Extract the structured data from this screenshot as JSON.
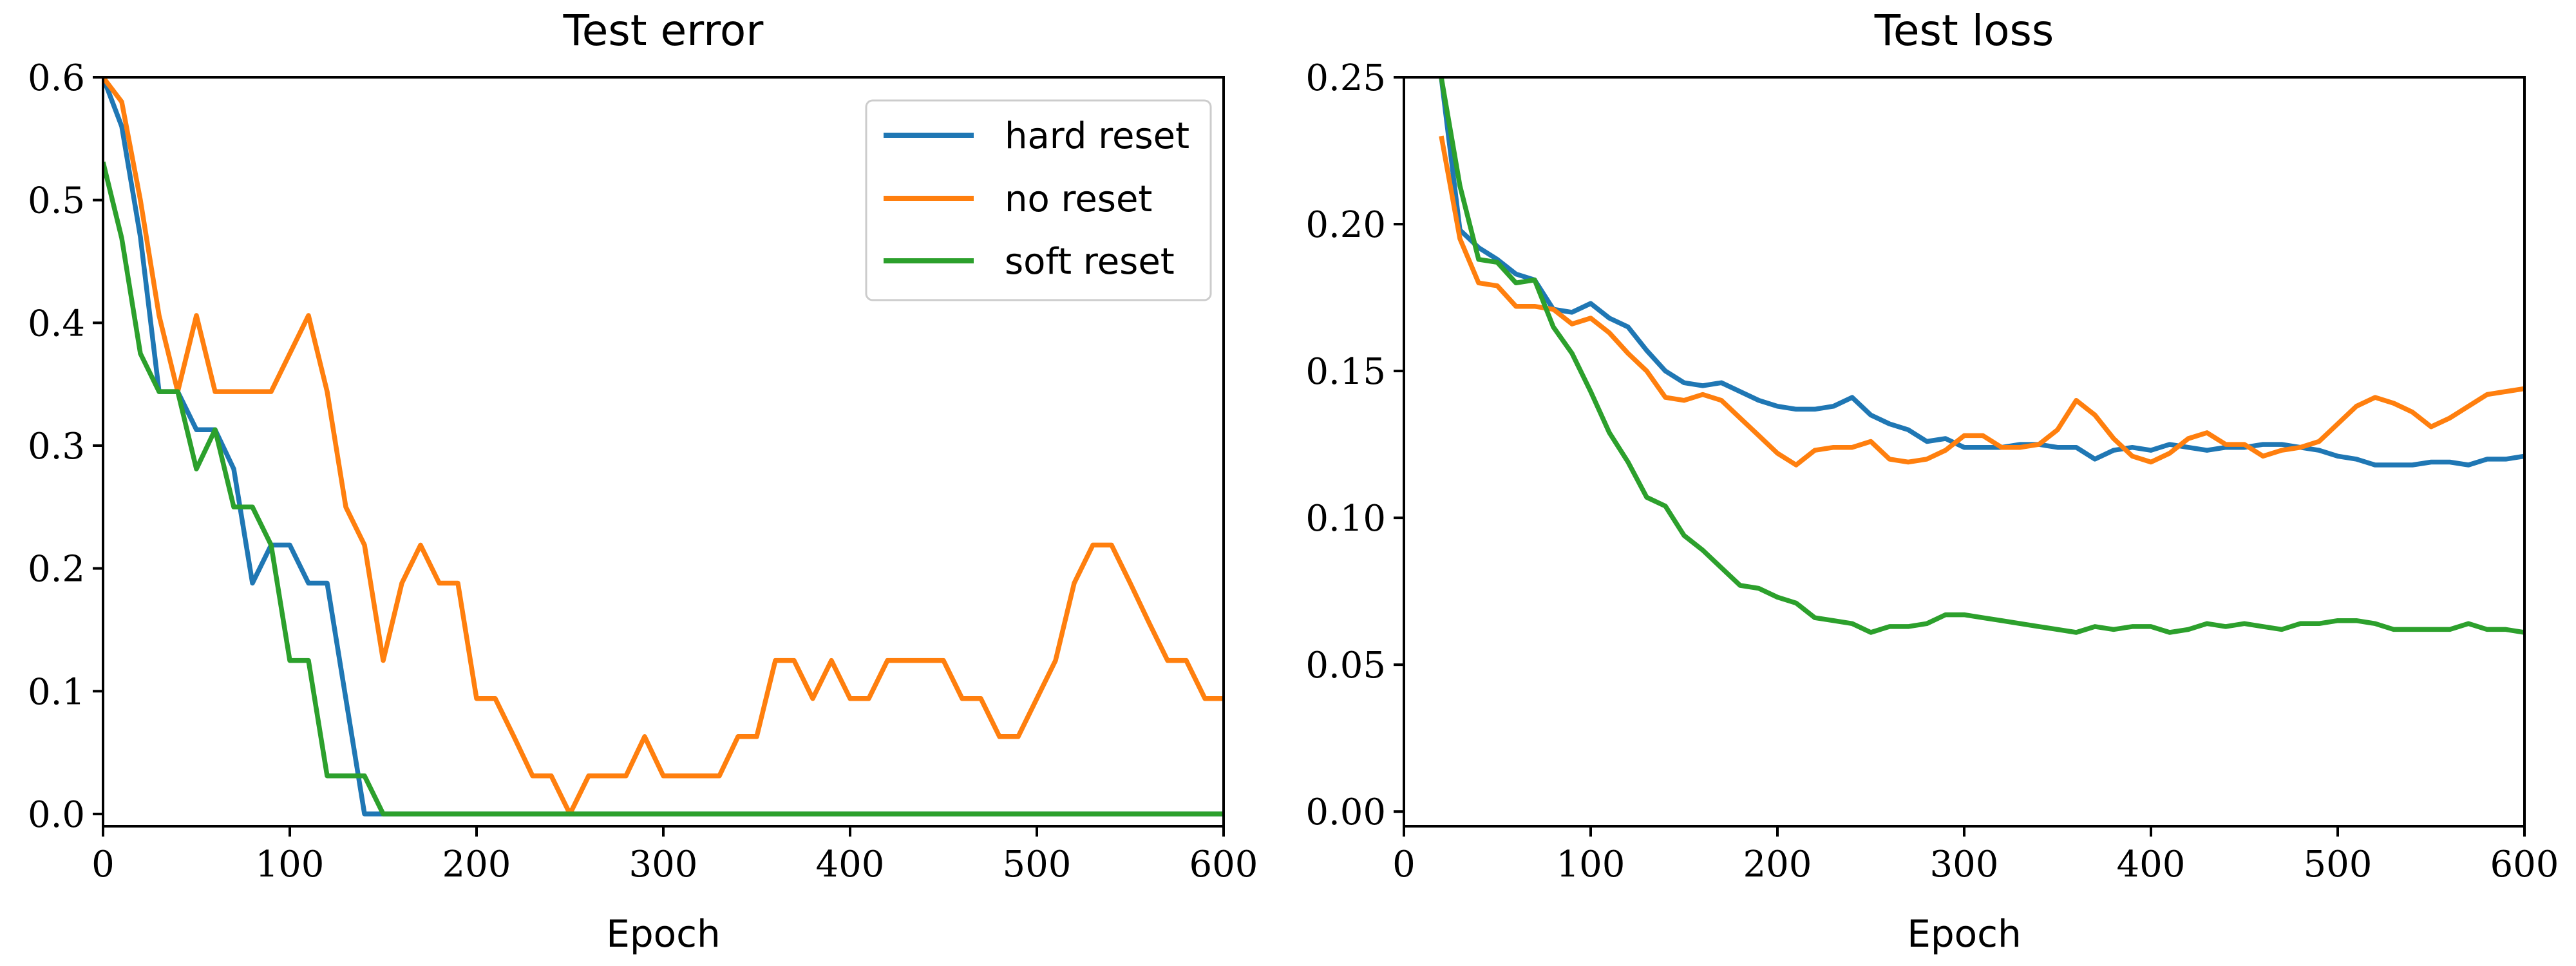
{
  "colors": {
    "hard_reset": "#1f77b4",
    "no_reset": "#ff7f0e",
    "soft_reset": "#2ca02c"
  },
  "chart_data": [
    {
      "type": "line",
      "title": "Test error",
      "xlabel": "Epoch",
      "ylabel": "",
      "xlim": [
        0,
        600
      ],
      "ylim": [
        -0.01,
        0.6
      ],
      "xticks": [
        0,
        100,
        200,
        300,
        400,
        500,
        600
      ],
      "xtick_labels": [
        "0",
        "100",
        "200",
        "300",
        "400",
        "500",
        "600"
      ],
      "yticks": [
        0.0,
        0.1,
        0.2,
        0.3,
        0.4,
        0.5,
        0.6
      ],
      "ytick_labels": [
        "0.0",
        "0.1",
        "0.2",
        "0.3",
        "0.4",
        "0.5",
        "0.6"
      ],
      "grid": false,
      "legend": "top-right",
      "series": [
        {
          "name": "hard reset",
          "color": "#1f77b4",
          "x": [
            0,
            10,
            20,
            30,
            40,
            50,
            60,
            70,
            80,
            90,
            100,
            110,
            120,
            130,
            140,
            150,
            160,
            170,
            180,
            190,
            200,
            210,
            220,
            230,
            240,
            250,
            260,
            270,
            280,
            290,
            300,
            310,
            320,
            330,
            340,
            350,
            360,
            370,
            380,
            390,
            400,
            410,
            420,
            430,
            440,
            450,
            460,
            470,
            480,
            490,
            500,
            510,
            520,
            530,
            540,
            550,
            560,
            570,
            580,
            590,
            600
          ],
          "y": [
            0.6,
            0.56,
            0.47,
            0.344,
            0.344,
            0.313,
            0.313,
            0.281,
            0.188,
            0.219,
            0.219,
            0.188,
            0.188,
            0.094,
            0.0,
            0.0,
            0.0,
            0.0,
            0.0,
            0.0,
            0.0,
            0.0,
            0.0,
            0.0,
            0.0,
            0.0,
            0.0,
            0.0,
            0.0,
            0.0,
            0.0,
            0.0,
            0.0,
            0.0,
            0.0,
            0.0,
            0.0,
            0.0,
            0.0,
            0.0,
            0.0,
            0.0,
            0.0,
            0.0,
            0.0,
            0.0,
            0.0,
            0.0,
            0.0,
            0.0,
            0.0,
            0.0,
            0.0,
            0.0,
            0.0,
            0.0,
            0.0,
            0.0,
            0.0,
            0.0,
            0.0
          ]
        },
        {
          "name": "no reset",
          "color": "#ff7f0e",
          "x": [
            0,
            10,
            20,
            30,
            40,
            50,
            60,
            70,
            80,
            90,
            100,
            110,
            120,
            130,
            140,
            150,
            160,
            170,
            180,
            190,
            200,
            210,
            220,
            230,
            240,
            250,
            260,
            270,
            280,
            290,
            300,
            310,
            320,
            330,
            340,
            350,
            360,
            370,
            380,
            390,
            400,
            410,
            420,
            430,
            440,
            450,
            460,
            470,
            480,
            490,
            500,
            510,
            520,
            530,
            540,
            550,
            560,
            570,
            580,
            590,
            600
          ],
          "y": [
            0.6,
            0.58,
            0.5,
            0.406,
            0.344,
            0.406,
            0.344,
            0.344,
            0.344,
            0.344,
            0.375,
            0.406,
            0.344,
            0.25,
            0.219,
            0.125,
            0.188,
            0.219,
            0.188,
            0.188,
            0.094,
            0.094,
            0.063,
            0.031,
            0.031,
            0.0,
            0.031,
            0.031,
            0.031,
            0.063,
            0.031,
            0.031,
            0.031,
            0.031,
            0.063,
            0.063,
            0.125,
            0.125,
            0.094,
            0.125,
            0.094,
            0.094,
            0.125,
            0.125,
            0.125,
            0.125,
            0.094,
            0.094,
            0.063,
            0.063,
            0.094,
            0.125,
            0.188,
            0.219,
            0.219,
            0.188,
            0.156,
            0.125,
            0.125,
            0.094,
            0.094
          ]
        },
        {
          "name": "soft reset",
          "color": "#2ca02c",
          "x": [
            0,
            10,
            20,
            30,
            40,
            50,
            60,
            70,
            80,
            90,
            100,
            110,
            120,
            130,
            140,
            150,
            160,
            170,
            180,
            190,
            200,
            210,
            220,
            230,
            240,
            250,
            260,
            270,
            280,
            290,
            300,
            310,
            320,
            330,
            340,
            350,
            360,
            370,
            380,
            390,
            400,
            410,
            420,
            430,
            440,
            450,
            460,
            470,
            480,
            490,
            500,
            510,
            520,
            530,
            540,
            550,
            560,
            570,
            580,
            590,
            600
          ],
          "y": [
            0.531,
            0.469,
            0.375,
            0.344,
            0.344,
            0.281,
            0.313,
            0.25,
            0.25,
            0.219,
            0.125,
            0.125,
            0.031,
            0.031,
            0.031,
            0.0,
            0.0,
            0.0,
            0.0,
            0.0,
            0.0,
            0.0,
            0.0,
            0.0,
            0.0,
            0.0,
            0.0,
            0.0,
            0.0,
            0.0,
            0.0,
            0.0,
            0.0,
            0.0,
            0.0,
            0.0,
            0.0,
            0.0,
            0.0,
            0.0,
            0.0,
            0.0,
            0.0,
            0.0,
            0.0,
            0.0,
            0.0,
            0.0,
            0.0,
            0.0,
            0.0,
            0.0,
            0.0,
            0.0,
            0.0,
            0.0,
            0.0,
            0.0,
            0.0,
            0.0,
            0.0
          ]
        }
      ]
    },
    {
      "type": "line",
      "title": "Test loss",
      "xlabel": "Epoch",
      "ylabel": "",
      "xlim": [
        0,
        600
      ],
      "ylim": [
        -0.005,
        0.25
      ],
      "xticks": [
        0,
        100,
        200,
        300,
        400,
        500,
        600
      ],
      "xtick_labels": [
        "0",
        "100",
        "200",
        "300",
        "400",
        "500",
        "600"
      ],
      "yticks": [
        0.0,
        0.05,
        0.1,
        0.15,
        0.2,
        0.25
      ],
      "ytick_labels": [
        "0.00",
        "0.05",
        "0.10",
        "0.15",
        "0.20",
        "0.25"
      ],
      "grid": false,
      "legend": "none",
      "series": [
        {
          "name": "hard reset",
          "color": "#1f77b4",
          "x": [
            20,
            30,
            40,
            50,
            60,
            70,
            80,
            90,
            100,
            110,
            120,
            130,
            140,
            150,
            160,
            170,
            180,
            190,
            200,
            210,
            220,
            230,
            240,
            250,
            260,
            270,
            280,
            290,
            300,
            310,
            320,
            330,
            340,
            350,
            360,
            370,
            380,
            390,
            400,
            410,
            420,
            430,
            440,
            450,
            460,
            470,
            480,
            490,
            500,
            510,
            520,
            530,
            540,
            550,
            560,
            570,
            580,
            590,
            600
          ],
          "y": [
            0.25,
            0.198,
            0.192,
            0.188,
            0.183,
            0.181,
            0.171,
            0.17,
            0.173,
            0.168,
            0.165,
            0.157,
            0.15,
            0.146,
            0.145,
            0.146,
            0.143,
            0.14,
            0.138,
            0.137,
            0.137,
            0.138,
            0.141,
            0.135,
            0.132,
            0.13,
            0.126,
            0.127,
            0.124,
            0.124,
            0.124,
            0.125,
            0.125,
            0.124,
            0.124,
            0.12,
            0.123,
            0.124,
            0.123,
            0.125,
            0.124,
            0.123,
            0.124,
            0.124,
            0.125,
            0.125,
            0.124,
            0.123,
            0.121,
            0.12,
            0.118,
            0.118,
            0.118,
            0.119,
            0.119,
            0.118,
            0.12,
            0.12,
            0.121
          ]
        },
        {
          "name": "no reset",
          "color": "#ff7f0e",
          "x": [
            20,
            30,
            40,
            50,
            60,
            70,
            80,
            90,
            100,
            110,
            120,
            130,
            140,
            150,
            160,
            170,
            180,
            190,
            200,
            210,
            220,
            230,
            240,
            250,
            260,
            270,
            280,
            290,
            300,
            310,
            320,
            330,
            340,
            350,
            360,
            370,
            380,
            390,
            400,
            410,
            420,
            430,
            440,
            450,
            460,
            470,
            480,
            490,
            500,
            510,
            520,
            530,
            540,
            550,
            560,
            570,
            580,
            590,
            600
          ],
          "y": [
            0.23,
            0.195,
            0.18,
            0.179,
            0.172,
            0.172,
            0.171,
            0.166,
            0.168,
            0.163,
            0.156,
            0.15,
            0.141,
            0.14,
            0.142,
            0.14,
            0.134,
            0.128,
            0.122,
            0.118,
            0.123,
            0.124,
            0.124,
            0.126,
            0.12,
            0.119,
            0.12,
            0.123,
            0.128,
            0.128,
            0.124,
            0.124,
            0.125,
            0.13,
            0.14,
            0.135,
            0.127,
            0.121,
            0.119,
            0.122,
            0.127,
            0.129,
            0.125,
            0.125,
            0.121,
            0.123,
            0.124,
            0.126,
            0.132,
            0.138,
            0.141,
            0.139,
            0.136,
            0.131,
            0.134,
            0.138,
            0.142,
            0.143,
            0.144
          ]
        },
        {
          "name": "soft reset",
          "color": "#2ca02c",
          "x": [
            20,
            30,
            40,
            50,
            60,
            70,
            80,
            90,
            100,
            110,
            120,
            130,
            140,
            150,
            160,
            170,
            180,
            190,
            200,
            210,
            220,
            230,
            240,
            250,
            260,
            270,
            280,
            290,
            300,
            310,
            320,
            330,
            340,
            350,
            360,
            370,
            380,
            390,
            400,
            410,
            420,
            430,
            440,
            450,
            460,
            470,
            480,
            490,
            500,
            510,
            520,
            530,
            540,
            550,
            560,
            570,
            580,
            590,
            600
          ],
          "y": [
            0.25,
            0.213,
            0.188,
            0.187,
            0.18,
            0.181,
            0.165,
            0.156,
            0.143,
            0.129,
            0.119,
            0.107,
            0.104,
            0.094,
            0.089,
            0.083,
            0.077,
            0.076,
            0.073,
            0.071,
            0.066,
            0.065,
            0.064,
            0.061,
            0.063,
            0.063,
            0.064,
            0.067,
            0.067,
            0.066,
            0.065,
            0.064,
            0.063,
            0.062,
            0.061,
            0.063,
            0.062,
            0.063,
            0.063,
            0.061,
            0.062,
            0.064,
            0.063,
            0.064,
            0.063,
            0.062,
            0.064,
            0.064,
            0.065,
            0.065,
            0.064,
            0.062,
            0.062,
            0.062,
            0.062,
            0.064,
            0.062,
            0.062,
            0.061
          ]
        }
      ]
    }
  ]
}
